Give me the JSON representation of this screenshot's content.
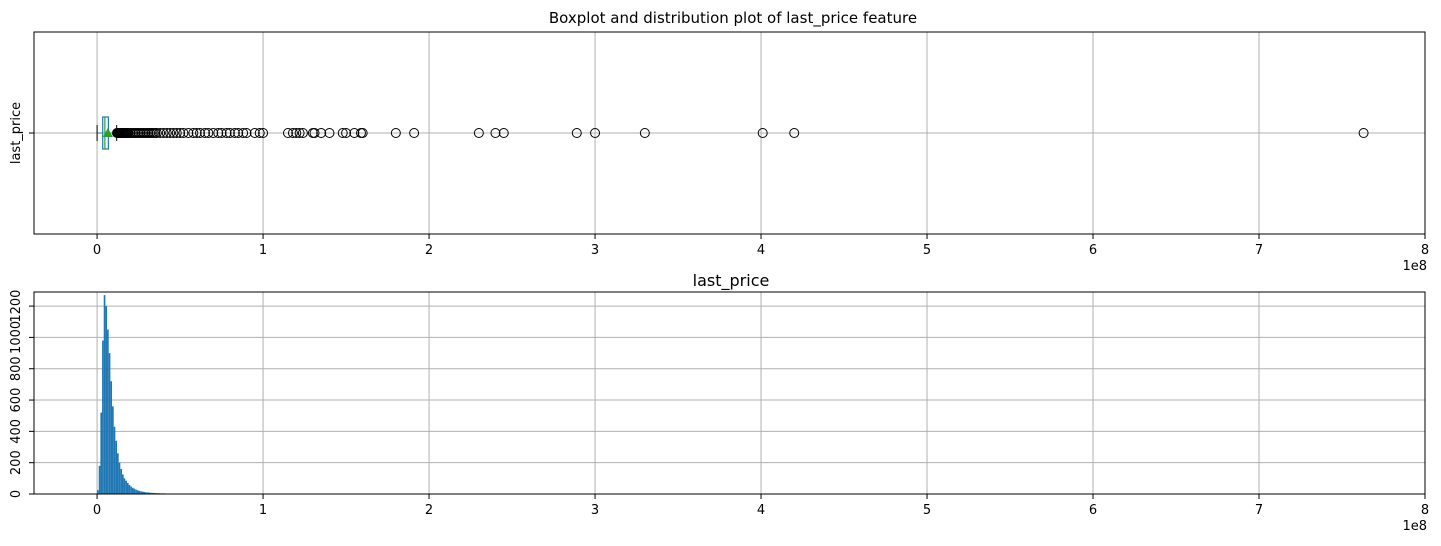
{
  "chart_data": [
    {
      "type": "box",
      "title": "Boxplot and distribution plot of last_price feature",
      "xlabel": "",
      "ylabel": "last_price",
      "x_offset_label": "1e8",
      "xlim": [
        -0.38,
        8.0
      ],
      "xticks": [
        0,
        1,
        2,
        3,
        4,
        5,
        6,
        7,
        8
      ],
      "x_tick_labels": [
        "0",
        "1",
        "2",
        "3",
        "4",
        "5",
        "6",
        "7",
        "8"
      ],
      "grid": true,
      "box_stats": {
        "whisker_low": 0.0,
        "q1": 0.034,
        "median": 0.047,
        "q3": 0.068,
        "whisker_high": 0.118,
        "mean": 0.065
      },
      "outliers": [
        0.12,
        0.125,
        0.13,
        0.135,
        0.14,
        0.145,
        0.15,
        0.155,
        0.16,
        0.165,
        0.17,
        0.175,
        0.18,
        0.185,
        0.19,
        0.2,
        0.21,
        0.22,
        0.23,
        0.24,
        0.25,
        0.26,
        0.27,
        0.28,
        0.29,
        0.3,
        0.31,
        0.32,
        0.33,
        0.34,
        0.35,
        0.36,
        0.38,
        0.4,
        0.42,
        0.44,
        0.46,
        0.48,
        0.5,
        0.52,
        0.55,
        0.58,
        0.6,
        0.62,
        0.65,
        0.67,
        0.7,
        0.73,
        0.75,
        0.78,
        0.8,
        0.83,
        0.85,
        0.88,
        0.9,
        0.95,
        0.98,
        1.0,
        1.15,
        1.18,
        1.2,
        1.22,
        1.24,
        1.3,
        1.31,
        1.35,
        1.4,
        1.48,
        1.5,
        1.55,
        1.59,
        1.6,
        1.8,
        1.91,
        2.3,
        2.4,
        2.45,
        2.89,
        3.0,
        3.3,
        4.01,
        4.2,
        7.63
      ],
      "colors": {
        "box": "#1f77b4",
        "median": "#2ca02c",
        "mean": "#2ca02c",
        "outlier": "#000000",
        "grid": "#b0b0b0"
      }
    },
    {
      "type": "histogram",
      "title": "last_price",
      "xlabel": "",
      "ylabel": "",
      "x_offset_label": "1e8",
      "xlim": [
        -0.38,
        8.0
      ],
      "ylim": [
        0,
        1290
      ],
      "xticks": [
        0,
        1,
        2,
        3,
        4,
        5,
        6,
        7,
        8
      ],
      "x_tick_labels": [
        "0",
        "1",
        "2",
        "3",
        "4",
        "5",
        "6",
        "7",
        "8"
      ],
      "yticks": [
        0,
        200,
        400,
        600,
        800,
        1000,
        1200
      ],
      "y_tick_labels": [
        "0",
        "200",
        "400",
        "600",
        "800",
        "1000",
        "1200"
      ],
      "grid": true,
      "bin_width": 0.01,
      "bin_start": 0.0,
      "counts": [
        25,
        180,
        520,
        980,
        1270,
        1200,
        1050,
        900,
        720,
        560,
        430,
        340,
        260,
        200,
        160,
        125,
        100,
        85,
        70,
        58,
        48,
        40,
        34,
        28,
        24,
        20,
        17,
        15,
        13,
        11,
        10,
        9,
        8,
        7,
        6,
        6,
        5,
        5,
        4,
        4,
        4,
        3,
        3,
        3,
        3,
        2,
        2,
        2,
        2,
        2,
        2,
        1,
        1,
        1,
        1,
        1,
        1,
        1,
        1,
        1
      ],
      "colors": {
        "bar": "#1f77b4",
        "grid": "#b0b0b0"
      }
    }
  ]
}
